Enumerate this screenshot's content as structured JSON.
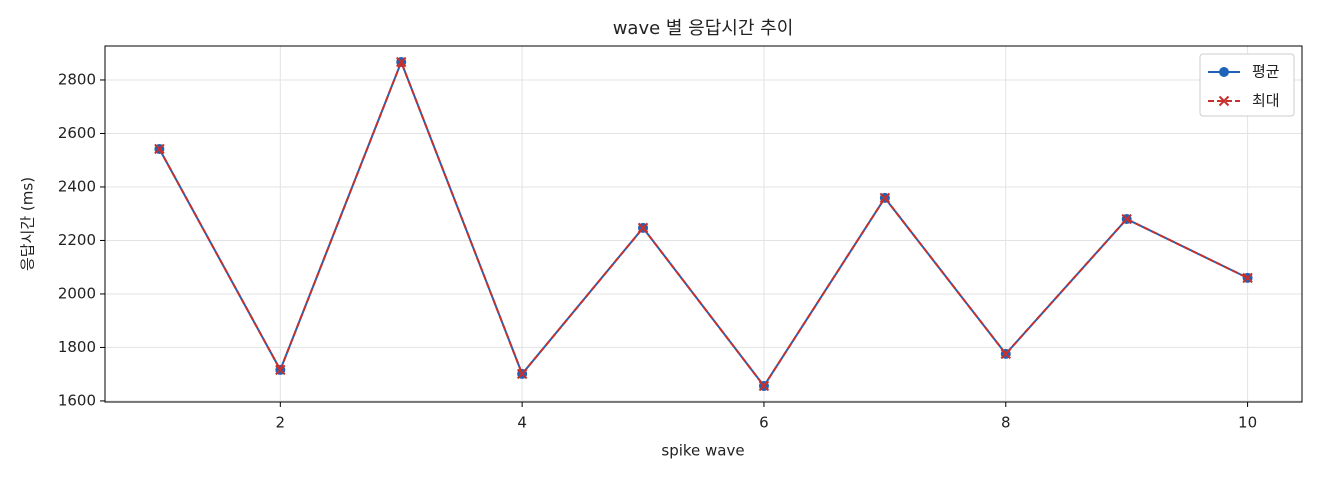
{
  "chart_data": {
    "type": "line",
    "title": "wave 별 응답시간 추이",
    "x_label": "spike wave",
    "y_label": "응답시간 (ms)",
    "x": [
      1,
      2,
      3,
      4,
      5,
      6,
      7,
      8,
      9,
      10
    ],
    "series": [
      {
        "name": "평균",
        "color": "#1f63b8",
        "marker": "o",
        "dash": false,
        "values": [
          2542,
          1716,
          2867,
          1701,
          2247,
          1656,
          2359,
          1776,
          2280,
          2060
        ]
      },
      {
        "name": "최대",
        "color": "#c8302c",
        "marker": "x",
        "dash": true,
        "values": [
          2542,
          1716,
          2867,
          1701,
          2247,
          1656,
          2359,
          1776,
          2280,
          2060
        ]
      }
    ],
    "xlim": [
      0.55,
      10.45
    ],
    "xticks": [
      2,
      4,
      6,
      8,
      10
    ],
    "ylim": [
      1596,
      2927
    ],
    "yticks": [
      1600,
      1800,
      2000,
      2200,
      2400,
      2600,
      2800
    ],
    "grid": true,
    "legend": "upper right"
  }
}
